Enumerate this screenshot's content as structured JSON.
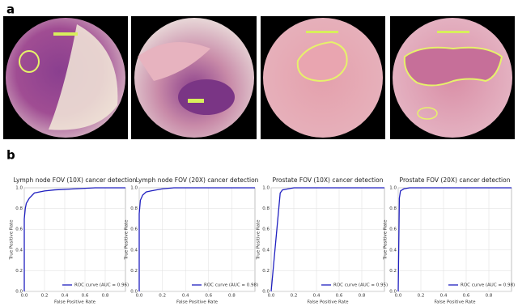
{
  "panel_labels": [
    "a",
    "b"
  ],
  "chart_data": [
    {
      "type": "line",
      "title": "Lymph node FOV (10X) cancer detection",
      "x_label": "False Positive Rate",
      "y_label": "True Positive Rate",
      "x": [
        0,
        0,
        0.01,
        0.02,
        0.05,
        0.1,
        0.2,
        0.3,
        0.5,
        0.7,
        1.0
      ],
      "series": [
        {
          "name": "ROC curve (AUC = 0.96)",
          "color": "#2020c0",
          "values": [
            0,
            0.7,
            0.8,
            0.85,
            0.9,
            0.95,
            0.97,
            0.98,
            0.99,
            1.0,
            1.0
          ]
        }
      ],
      "xlim": [
        0,
        1
      ],
      "ylim": [
        0,
        1
      ],
      "xticks": [
        {
          "value": 0,
          "label": "0.0"
        },
        {
          "value": 0.2,
          "label": "0.2"
        },
        {
          "value": 0.4,
          "label": "0.4"
        },
        {
          "value": 0.6,
          "label": "0.6"
        },
        {
          "value": 0.8,
          "label": "0.8"
        }
      ],
      "yticks": [
        {
          "value": 0,
          "label": "0.0"
        },
        {
          "value": 0.2,
          "label": "0.2"
        },
        {
          "value": 0.4,
          "label": "0.4"
        },
        {
          "value": 0.6,
          "label": "0.6"
        },
        {
          "value": 0.8,
          "label": "0.8"
        },
        {
          "value": 1,
          "label": "1.0"
        }
      ],
      "grid": true,
      "legend": "lower right"
    },
    {
      "type": "line",
      "title": "Lymph node FOV (20X) cancer detection",
      "x_label": "False Positive Rate",
      "y_label": "True Positive Rate",
      "x": [
        0,
        0,
        0.01,
        0.03,
        0.06,
        0.1,
        0.2,
        0.3,
        1.0
      ],
      "series": [
        {
          "name": "ROC curve (AUC = 0.98)",
          "color": "#2020c0",
          "values": [
            0,
            0.75,
            0.88,
            0.93,
            0.96,
            0.97,
            0.99,
            1.0,
            1.0
          ]
        }
      ],
      "xlim": [
        0,
        1
      ],
      "ylim": [
        0,
        1
      ],
      "xticks": [
        {
          "value": 0,
          "label": "0.0"
        },
        {
          "value": 0.2,
          "label": "0.2"
        },
        {
          "value": 0.4,
          "label": "0.4"
        },
        {
          "value": 0.6,
          "label": "0.6"
        },
        {
          "value": 0.8,
          "label": "0.8"
        }
      ],
      "yticks": [
        {
          "value": 0,
          "label": "0.0"
        },
        {
          "value": 0.2,
          "label": "0.2"
        },
        {
          "value": 0.4,
          "label": "0.4"
        },
        {
          "value": 0.6,
          "label": "0.6"
        },
        {
          "value": 0.8,
          "label": "0.8"
        },
        {
          "value": 1,
          "label": "1.0"
        }
      ],
      "grid": true,
      "legend": "lower right"
    },
    {
      "type": "line",
      "title": "Prostate FOV (10X) cancer detection",
      "x_label": "False Positive Rate",
      "y_label": "True Positive Rate",
      "x": [
        0,
        0.08,
        0.1,
        0.15,
        0.2,
        1.0
      ],
      "series": [
        {
          "name": "ROC curve (AUC = 0.95)",
          "color": "#2020c0",
          "values": [
            0,
            0.95,
            0.98,
            0.99,
            1.0,
            1.0
          ]
        }
      ],
      "xlim": [
        0,
        1
      ],
      "ylim": [
        0,
        1
      ],
      "xticks": [
        {
          "value": 0,
          "label": "0.0"
        },
        {
          "value": 0.2,
          "label": "0.2"
        },
        {
          "value": 0.4,
          "label": "0.4"
        },
        {
          "value": 0.6,
          "label": "0.6"
        },
        {
          "value": 0.8,
          "label": "0.8"
        }
      ],
      "yticks": [
        {
          "value": 0,
          "label": "0.0"
        },
        {
          "value": 0.2,
          "label": "0.2"
        },
        {
          "value": 0.4,
          "label": "0.4"
        },
        {
          "value": 0.6,
          "label": "0.6"
        },
        {
          "value": 0.8,
          "label": "0.8"
        },
        {
          "value": 1,
          "label": "1.0"
        }
      ],
      "grid": true,
      "legend": "lower right"
    },
    {
      "type": "line",
      "title": "Prostate FOV (20X) cancer detection",
      "x_label": "False Positive Rate",
      "y_label": "True Positive Rate",
      "x": [
        0,
        0.01,
        0.02,
        0.05,
        0.1,
        1.0
      ],
      "series": [
        {
          "name": "ROC curve (AUC = 0.98)",
          "color": "#2020c0",
          "values": [
            0,
            0.9,
            0.97,
            0.99,
            1.0,
            1.0
          ]
        }
      ],
      "xlim": [
        0,
        1
      ],
      "ylim": [
        0,
        1
      ],
      "xticks": [
        {
          "value": 0,
          "label": "0.0"
        },
        {
          "value": 0.2,
          "label": "0.2"
        },
        {
          "value": 0.4,
          "label": "0.4"
        },
        {
          "value": 0.6,
          "label": "0.6"
        },
        {
          "value": 0.8,
          "label": "0.8"
        }
      ],
      "yticks": [
        {
          "value": 0,
          "label": "0.0"
        },
        {
          "value": 0.2,
          "label": "0.2"
        },
        {
          "value": 0.4,
          "label": "0.4"
        },
        {
          "value": 0.6,
          "label": "0.6"
        },
        {
          "value": 0.8,
          "label": "0.8"
        },
        {
          "value": 1,
          "label": "1.0"
        }
      ],
      "grid": true,
      "legend": "lower right"
    }
  ]
}
